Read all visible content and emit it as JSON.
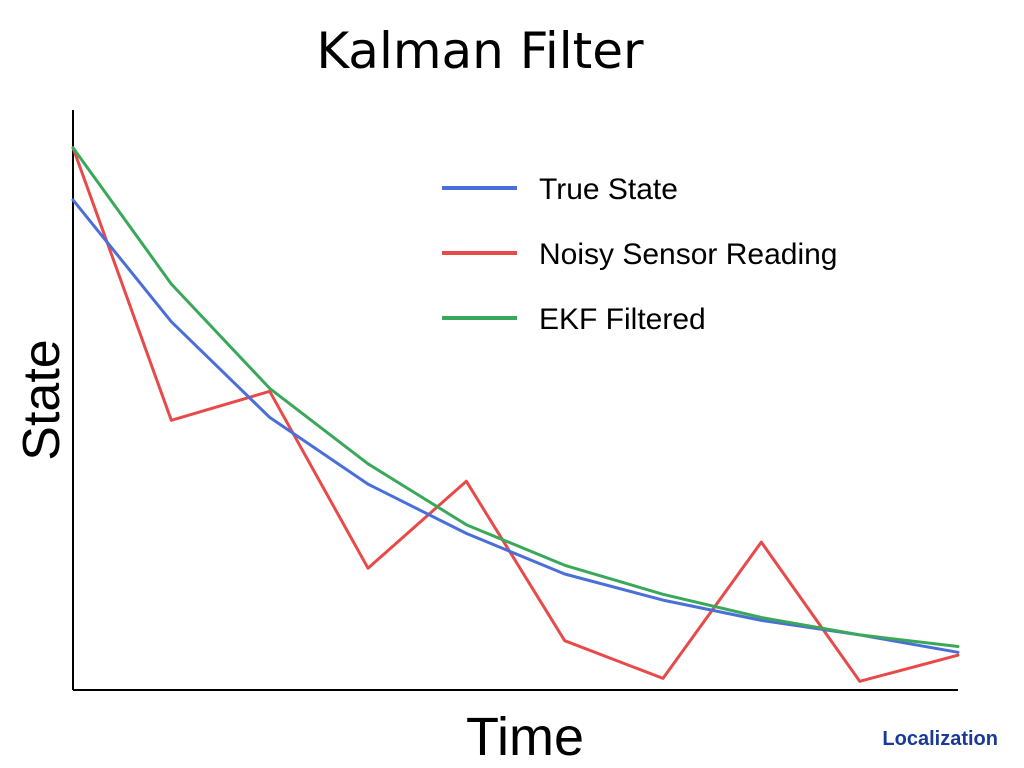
{
  "title": "Kalman Filter",
  "footer": "Localization",
  "chart_data": {
    "type": "line",
    "title": "Kalman Filter",
    "xlabel": "Time",
    "ylabel": "State",
    "xlim": [
      0,
      9
    ],
    "ylim": [
      0,
      100
    ],
    "grid": false,
    "legend": "top-right",
    "x": [
      0,
      1,
      2,
      3,
      4,
      5,
      6,
      7,
      8,
      9
    ],
    "series": [
      {
        "name": "True State",
        "color": "#4a6fd8",
        "values": [
          84.5,
          63.5,
          47,
          35.5,
          27,
          20,
          15.5,
          12,
          9.5,
          6.5
        ]
      },
      {
        "name": "Noisy Sensor Reading",
        "color": "#e84a4a",
        "values": [
          93.5,
          46.5,
          51.5,
          21,
          36,
          8.5,
          2,
          25.5,
          1.5,
          6
        ]
      },
      {
        "name": "EKF Filtered",
        "color": "#3aa85a",
        "values": [
          93.5,
          70,
          52,
          39,
          28.5,
          21.5,
          16.5,
          12.5,
          9.5,
          7.5
        ]
      }
    ]
  }
}
